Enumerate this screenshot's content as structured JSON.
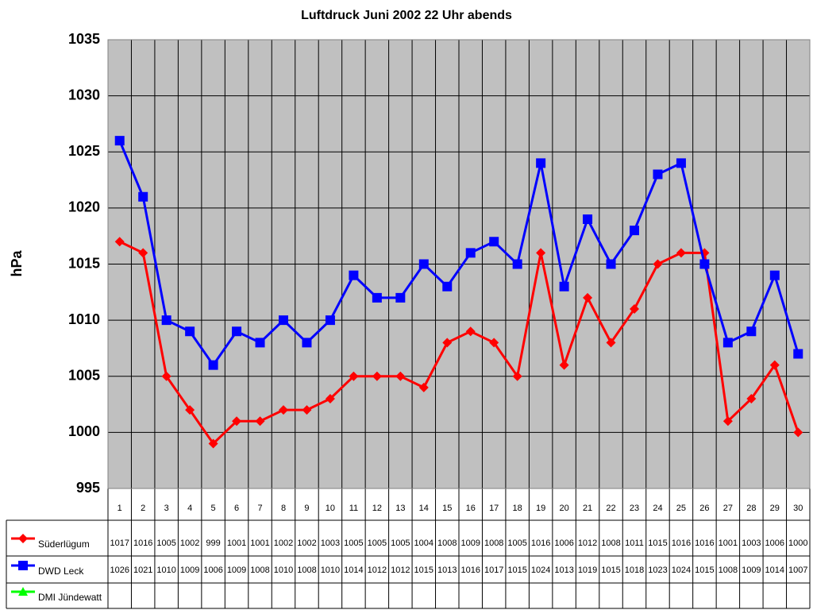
{
  "chart_data": {
    "type": "line",
    "title": "Luftdruck Juni 2002 22 Uhr abends",
    "y_label": "hPa",
    "categories": [
      "1",
      "2",
      "3",
      "4",
      "5",
      "6",
      "7",
      "8",
      "9",
      "10",
      "11",
      "12",
      "13",
      "14",
      "15",
      "16",
      "17",
      "18",
      "19",
      "20",
      "21",
      "22",
      "23",
      "24",
      "25",
      "26",
      "27",
      "28",
      "29",
      "30"
    ],
    "series": [
      {
        "name": "Süderlügum",
        "color": "#ff0000",
        "marker": "diamond",
        "values": [
          1017,
          1016,
          1005,
          1002,
          999,
          1001,
          1001,
          1002,
          1002,
          1003,
          1005,
          1005,
          1005,
          1004,
          1008,
          1009,
          1008,
          1005,
          1016,
          1006,
          1012,
          1008,
          1011,
          1015,
          1016,
          1016,
          1001,
          1003,
          1006,
          1000
        ]
      },
      {
        "name": "DWD Leck",
        "color": "#0000ff",
        "marker": "square",
        "values": [
          1026,
          1021,
          1010,
          1009,
          1006,
          1009,
          1008,
          1010,
          1008,
          1010,
          1014,
          1012,
          1012,
          1015,
          1013,
          1016,
          1017,
          1015,
          1024,
          1013,
          1019,
          1015,
          1018,
          1023,
          1024,
          1015,
          1008,
          1009,
          1014,
          1007
        ]
      },
      {
        "name": "DMI Jündewatt",
        "color": "#00ff00",
        "marker": "triangle",
        "values": [
          null,
          null,
          null,
          null,
          null,
          null,
          null,
          null,
          null,
          null,
          null,
          null,
          null,
          null,
          null,
          null,
          null,
          null,
          null,
          null,
          null,
          null,
          null,
          null,
          null,
          null,
          null,
          null,
          null,
          null
        ]
      }
    ],
    "ylim": [
      995,
      1035
    ],
    "yticks": [
      995,
      1000,
      1005,
      1010,
      1015,
      1020,
      1025,
      1030,
      1035
    ],
    "grid": true,
    "data_table": true
  }
}
